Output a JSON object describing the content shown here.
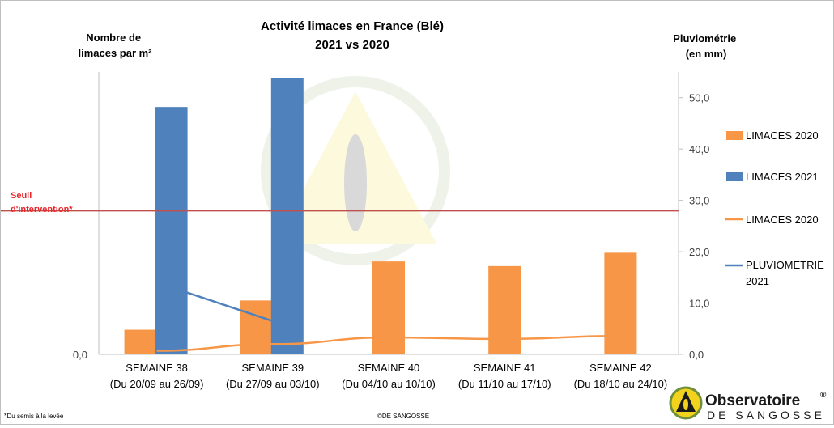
{
  "chart_data": {
    "type": "bar",
    "title": "Activité limaces en France (Blé)",
    "subtitle": "2021 vs 2020",
    "ylabel_left": "Nombre de limaces par m²",
    "ylabel_right": "Pluviométrie (en mm)",
    "left_axis_ticks": [
      "0,0"
    ],
    "right_axis_ticks": [
      "0,0",
      "10,0",
      "20,0",
      "30,0",
      "40,0",
      "50,0"
    ],
    "right_ylim": [
      0,
      55
    ],
    "categories": [
      "SEMAINE 38 (Du 20/09 au 26/09)",
      "SEMAINE 39 (Du 27/09 au 03/10)",
      "SEMAINE 40 (Du 04/10 au 10/10)",
      "SEMAINE 41 (Du 11/10 au 17/10)",
      "SEMAINE 42 (Du 18/10 au 24/10)"
    ],
    "category_lines": [
      [
        "SEMAINE 38",
        "(Du 20/09 au 26/09)"
      ],
      [
        "SEMAINE 39",
        "(Du 27/09 au 03/10)"
      ],
      [
        "SEMAINE 40",
        "(Du 04/10 au 10/10)"
      ],
      [
        "SEMAINE 41",
        "(Du 11/10 au 17/10)"
      ],
      [
        "SEMAINE 42",
        "(Du 18/10 au 24/10)"
      ]
    ],
    "bar_series": [
      {
        "name": "LIMACES 2020",
        "color": "#f79646",
        "values": [
          4.8,
          10.5,
          18.1,
          17.2,
          19.8
        ]
      },
      {
        "name": "LIMACES 2021",
        "color": "#4f81bd",
        "values": [
          48.2,
          53.8,
          null,
          null,
          null
        ]
      }
    ],
    "line_series": [
      {
        "name": "LIMACES 2020",
        "color": "#f79646",
        "values": [
          0.7,
          2.0,
          3.3,
          3.0,
          3.6
        ]
      },
      {
        "name": "PLUVIOMETRIE 2021",
        "color": "#4f81bd",
        "values": [
          14.0,
          6.5,
          null,
          null,
          null
        ]
      }
    ],
    "threshold": {
      "label_line1": "Seuil",
      "label_line2": "d'intervention*",
      "value": 28.0,
      "color": "#c0504d"
    },
    "legend_position": "right",
    "grid": false
  },
  "footnote": "Du semis à la levée",
  "footnote_mark": "*",
  "copyright": "©DE SANGOSSE",
  "brand": {
    "name": "Observatoire",
    "reg": "®",
    "sub": "DE SANGOSSE"
  }
}
